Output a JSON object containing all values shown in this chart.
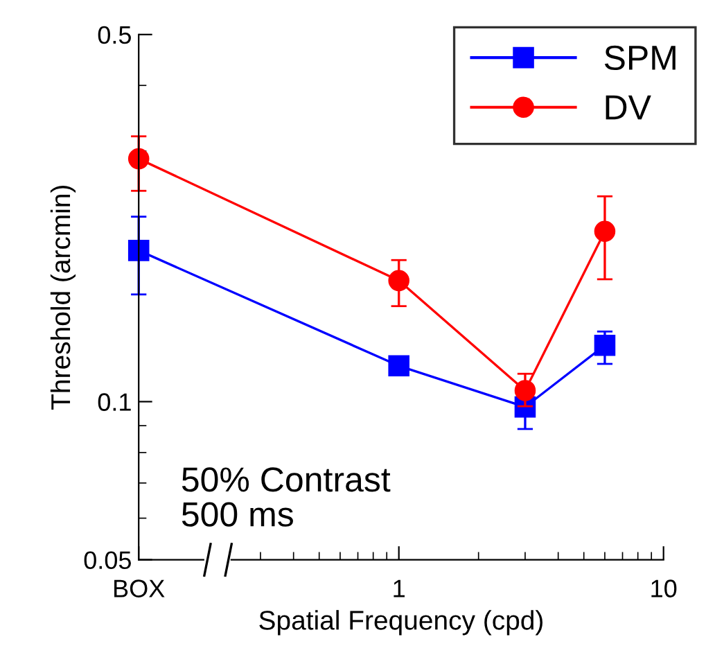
{
  "chart_data": {
    "type": "line",
    "xlabel": "Spatial Frequency (cpd)",
    "ylabel": "Threshold (arcmin)",
    "x": [
      0.104,
      1,
      3,
      6
    ],
    "series": [
      {
        "name": "SPM",
        "color": "#0000ff",
        "marker": "square",
        "values": [
          0.194,
          0.117,
          0.0977,
          0.128
        ],
        "errors": [
          [
            0.16,
            0.225
          ],
          null,
          [
            0.0887,
            0.0977
          ],
          [
            0.118,
            0.136
          ]
        ]
      },
      {
        "name": "DV",
        "color": "#ff0000",
        "marker": "circle",
        "values": [
          0.29,
          0.17,
          0.105,
          0.211
        ],
        "errors": [
          [
            0.252,
            0.32
          ],
          [
            0.152,
            0.186
          ],
          [
            0.098,
            0.113
          ],
          [
            0.171,
            0.246
          ]
        ]
      }
    ],
    "log": "xy",
    "xlim": [
      0.104,
      10
    ],
    "ylim": [
      0.05,
      0.5
    ],
    "xticks": [
      {
        "value": 0.104,
        "label": "BOX"
      },
      1,
      10
    ],
    "yticks": [
      0.05,
      0.1,
      0.5
    ],
    "grid": false,
    "legend": "top right",
    "line_style": "solid",
    "annotations": [
      "50% Contrast\n500 ms"
    ]
  }
}
